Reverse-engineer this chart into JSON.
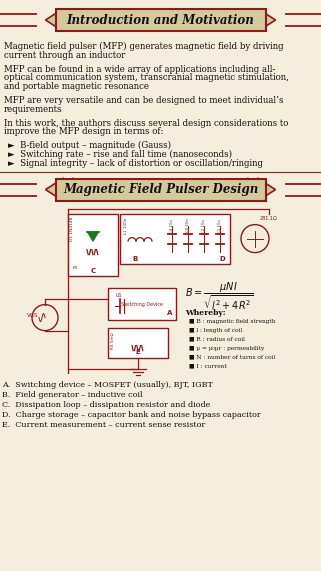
{
  "title1": "Introduction and Motivation",
  "title2": "Magnetic Field Pulser Design",
  "bg_color": "#f5eedc",
  "banner_fill": "#d4c99a",
  "banner_edge": "#8b1a1a",
  "text_color": "#111111",
  "circuit_color": "#8b1a1a",
  "green_color": "#1a7a1a",
  "intro_blocks": [
    "Magnetic field pulser (MFP) generates magnetic field by driving\ncurrent through an inductor",
    "MFP can be found in a wide array of applications including all-\noptical communication system, transcranial magnetic stimulation,\nand portable magnetic resonance",
    "MFP are very versatile and can be designed to meet individual’s\nrequirements",
    "In this work, the authors discuss several design considerations to\nimprove the MFP design in terms of:"
  ],
  "bullet_items": [
    "►  B-field output – magnitude (Gauss)",
    "►  Switching rate – rise and fall time (nanoseconds)",
    "►  Signal integrity – lack of distortion or oscillation/ringing"
  ],
  "bottom_labels": [
    "A.  Switching device – MOSFET (usually), BJT, IGBT",
    "B.  Field generator – inductive coil",
    "C.  Dissipation loop – dissipation resistor and diode",
    "D.  Charge storage – capacitor bank and noise bypass capacitor",
    "E.  Current measurement – current sense resistor"
  ],
  "whereby_items": [
    "B : magnetic field strength",
    "l : length of coil",
    "R : radius of coil",
    "μ = μ₀μr : permeability",
    "N : number of turns of coil",
    "I : current"
  ],
  "figsize": [
    3.21,
    5.71
  ],
  "dpi": 100
}
